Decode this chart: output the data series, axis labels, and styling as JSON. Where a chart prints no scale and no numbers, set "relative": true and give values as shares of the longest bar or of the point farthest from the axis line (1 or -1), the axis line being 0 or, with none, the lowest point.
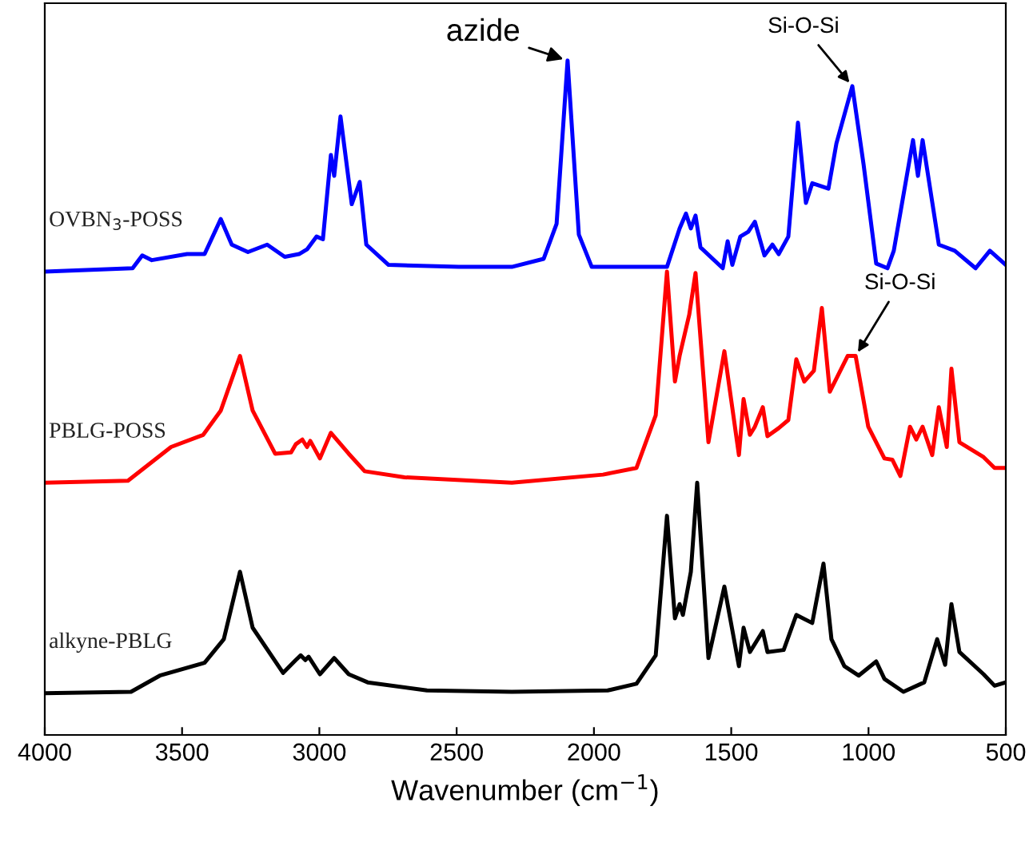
{
  "chart_data": {
    "type": "line",
    "relative": true,
    "xlabel": "Wavenumber (cm$^{−1}$)",
    "xlim": [
      4000,
      500
    ],
    "xticks": [
      4000,
      3500,
      3000,
      2500,
      2000,
      1500,
      1000,
      500
    ],
    "tick_labels": "x",
    "grid": false,
    "legend": false,
    "marker": "none",
    "line_style": "solid",
    "series": [
      {
        "name": "OVBN$_{3}$-POSS",
        "color": "#0000ff",
        "x": [
          4000,
          3680,
          3645,
          3610,
          3482,
          3418,
          3359,
          3319,
          3260,
          3190,
          3126,
          3074,
          3045,
          3010,
          2987,
          2958,
          2946,
          2923,
          2882,
          2853,
          2829,
          2748,
          2492,
          2299,
          2183,
          2136,
          2096,
          2055,
          2008,
          1734,
          1688,
          1665,
          1647,
          1630,
          1612,
          1531,
          1513,
          1496,
          1467,
          1438,
          1414,
          1379,
          1350,
          1327,
          1292,
          1257,
          1228,
          1205,
          1146,
          1117,
          1059,
          1018,
          972,
          931,
          908,
          838,
          820,
          803,
          744,
          686,
          610,
          558,
          500
        ],
        "values": [
          0.687,
          0.692,
          0.711,
          0.704,
          0.713,
          0.713,
          0.765,
          0.727,
          0.716,
          0.727,
          0.709,
          0.713,
          0.72,
          0.739,
          0.735,
          0.86,
          0.829,
          0.917,
          0.787,
          0.82,
          0.727,
          0.697,
          0.694,
          0.694,
          0.706,
          0.758,
          1.0,
          0.742,
          0.694,
          0.694,
          0.751,
          0.773,
          0.751,
          0.77,
          0.723,
          0.692,
          0.732,
          0.697,
          0.739,
          0.746,
          0.761,
          0.711,
          0.727,
          0.713,
          0.739,
          0.908,
          0.789,
          0.818,
          0.81,
          0.877,
          0.962,
          0.846,
          0.699,
          0.692,
          0.718,
          0.882,
          0.829,
          0.882,
          0.727,
          0.718,
          0.692,
          0.718,
          0.697
        ]
      },
      {
        "name": "PBLG-POSS",
        "color": "#ff0000",
        "x": [
          4000,
          3697,
          3540,
          3423,
          3359,
          3289,
          3243,
          3161,
          3103,
          3086,
          3062,
          3045,
          3033,
          2998,
          2958,
          2893,
          2835,
          2690,
          2299,
          1967,
          1845,
          1775,
          1734,
          1705,
          1688,
          1653,
          1630,
          1583,
          1525,
          1472,
          1455,
          1432,
          1414,
          1385,
          1368,
          1327,
          1292,
          1263,
          1234,
          1199,
          1170,
          1141,
          1076,
          1047,
          1001,
          942,
          913,
          884,
          849,
          826,
          803,
          768,
          744,
          715,
          698,
          669,
          581,
          541,
          500
        ],
        "values": [
          0.374,
          0.377,
          0.427,
          0.445,
          0.481,
          0.562,
          0.481,
          0.417,
          0.419,
          0.431,
          0.438,
          0.427,
          0.436,
          0.41,
          0.448,
          0.417,
          0.391,
          0.382,
          0.374,
          0.386,
          0.396,
          0.474,
          0.687,
          0.524,
          0.562,
          0.623,
          0.685,
          0.434,
          0.569,
          0.415,
          0.498,
          0.445,
          0.457,
          0.486,
          0.443,
          0.455,
          0.467,
          0.557,
          0.524,
          0.54,
          0.633,
          0.509,
          0.562,
          0.562,
          0.457,
          0.41,
          0.408,
          0.384,
          0.457,
          0.438,
          0.457,
          0.415,
          0.486,
          0.427,
          0.543,
          0.434,
          0.412,
          0.396,
          0.396
        ]
      },
      {
        "name": "alkyne-PBLG",
        "color": "#000000",
        "x": [
          4000,
          3686,
          3581,
          3418,
          3348,
          3289,
          3243,
          3132,
          3086,
          3068,
          3051,
          3039,
          2998,
          2946,
          2893,
          2824,
          2608,
          2299,
          1950,
          1845,
          1775,
          1734,
          1705,
          1688,
          1676,
          1647,
          1624,
          1583,
          1525,
          1472,
          1455,
          1432,
          1385,
          1368,
          1309,
          1263,
          1205,
          1164,
          1135,
          1088,
          1036,
          972,
          942,
          873,
          797,
          750,
          721,
          698,
          669,
          581,
          541,
          500
        ],
        "values": [
          0.062,
          0.064,
          0.088,
          0.107,
          0.142,
          0.242,
          0.159,
          0.092,
          0.111,
          0.118,
          0.111,
          0.116,
          0.09,
          0.114,
          0.09,
          0.078,
          0.066,
          0.064,
          0.066,
          0.076,
          0.118,
          0.325,
          0.173,
          0.194,
          0.178,
          0.242,
          0.374,
          0.114,
          0.22,
          0.102,
          0.159,
          0.123,
          0.154,
          0.123,
          0.126,
          0.178,
          0.166,
          0.254,
          0.142,
          0.102,
          0.088,
          0.109,
          0.083,
          0.064,
          0.078,
          0.142,
          0.104,
          0.194,
          0.123,
          0.09,
          0.073,
          0.078
        ]
      }
    ],
    "annotations": [
      {
        "text": "azide",
        "x": 2096,
        "y": 1.0
      },
      {
        "text": "Si-O-Si",
        "x": 1059,
        "y": 0.962
      },
      {
        "text": "Si-O-Si",
        "x": 1047,
        "y": 0.562
      }
    ]
  }
}
